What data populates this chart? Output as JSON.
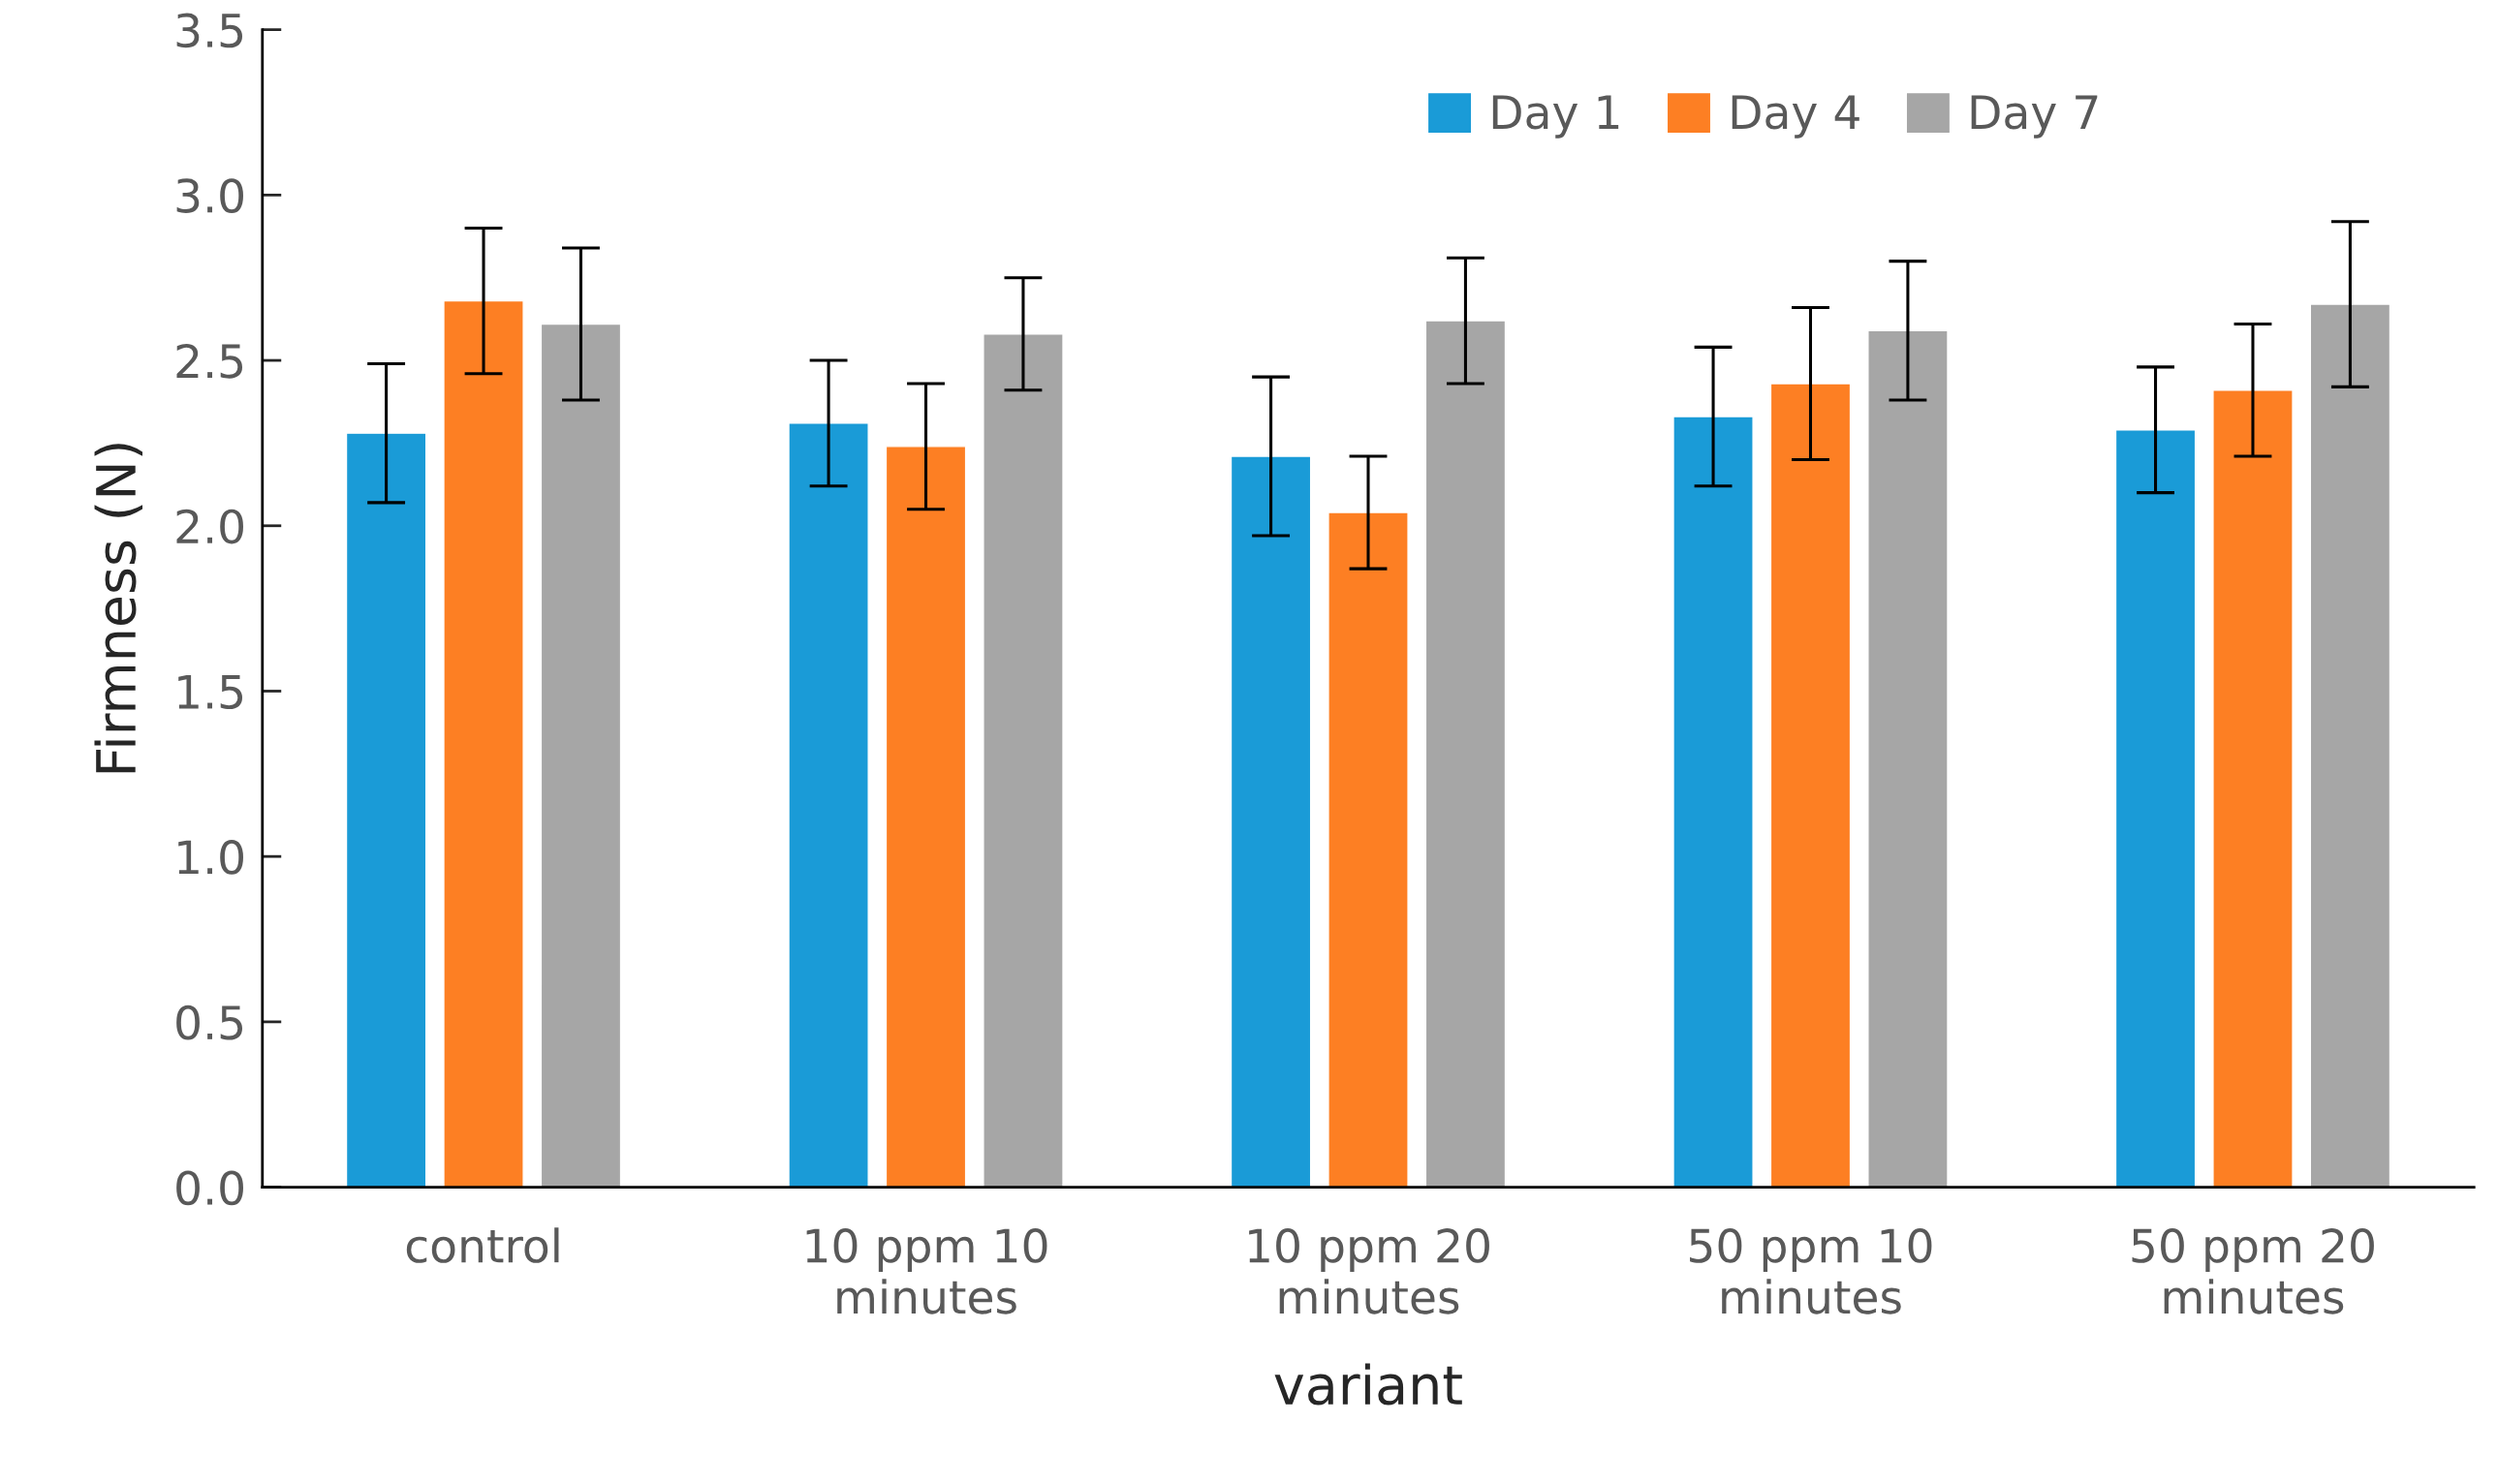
{
  "chart_data": {
    "type": "bar",
    "xlabel": "variant",
    "ylabel": "Firmness (N)",
    "categories": [
      "control",
      "10 ppm 10\nminutes",
      "10 ppm 20\nminutes",
      "50 ppm 10\nminutes",
      "50 ppm 20\nminutes"
    ],
    "series": [
      {
        "name": "Day 1",
        "color": "#1a9bd7",
        "values": [
          2.28,
          2.31,
          2.21,
          2.33,
          2.29
        ],
        "errors": [
          0.21,
          0.19,
          0.24,
          0.21,
          0.19
        ]
      },
      {
        "name": "Day 4",
        "color": "#fd7f23",
        "values": [
          2.68,
          2.24,
          2.04,
          2.43,
          2.41
        ],
        "errors": [
          0.22,
          0.19,
          0.17,
          0.23,
          0.2
        ]
      },
      {
        "name": "Day 7",
        "color": "#a6a6a6",
        "values": [
          2.61,
          2.58,
          2.62,
          2.59,
          2.67
        ],
        "errors": [
          0.23,
          0.17,
          0.19,
          0.21,
          0.25
        ]
      }
    ],
    "ylim": [
      0,
      3.5
    ],
    "yticks": [
      {
        "value": 0,
        "label": "0.0"
      },
      {
        "value": 0.5,
        "label": "0.5"
      },
      {
        "value": 1,
        "label": "1.0"
      },
      {
        "value": 1.5,
        "label": "1.5"
      },
      {
        "value": 2,
        "label": "2.0"
      },
      {
        "value": 2.5,
        "label": "2.5"
      },
      {
        "value": 3,
        "label": "3.0"
      },
      {
        "value": 3.5,
        "label": "3.5"
      }
    ],
    "grid": false,
    "legend": "top right"
  }
}
